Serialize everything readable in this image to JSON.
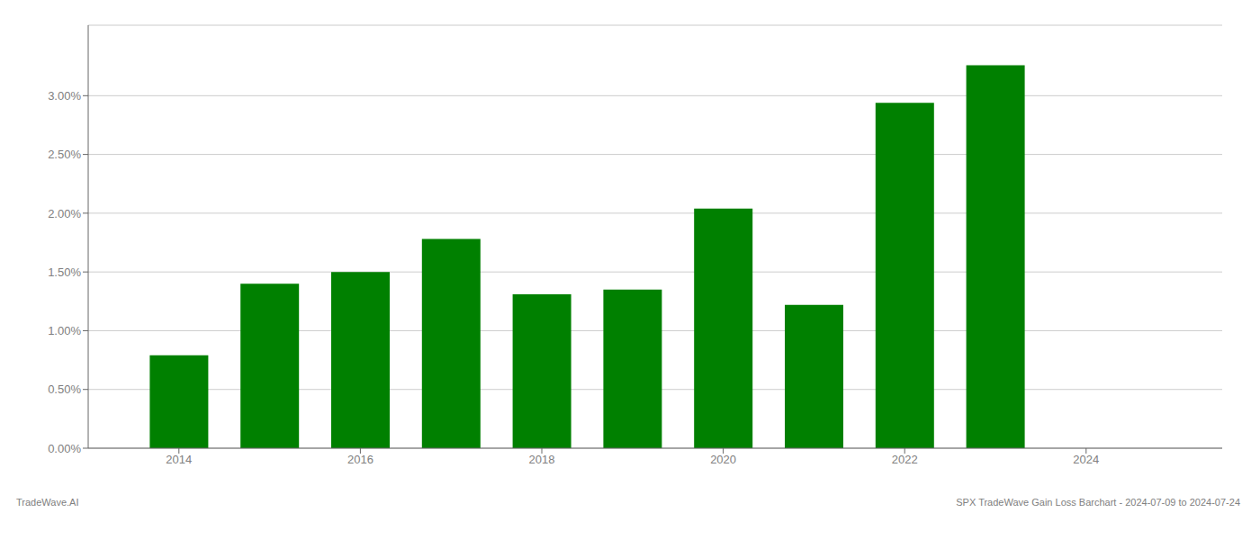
{
  "chart_data": {
    "type": "bar",
    "title": "SPX TradeWave Gain Loss Barchart - 2024-07-09 to 2024-07-24",
    "annotations": [
      "TradeWave.AI"
    ],
    "x": [
      2014,
      2015,
      2016,
      2017,
      2018,
      2019,
      2020,
      2021,
      2022,
      2023
    ],
    "values": [
      0.0079,
      0.014,
      0.015,
      0.0178,
      0.0131,
      0.0135,
      0.0204,
      0.0122,
      0.0294,
      0.0326
    ],
    "color": "#008000",
    "xlim": [
      2013.0,
      2025.5
    ],
    "xticks": [
      2014,
      2016,
      2018,
      2020,
      2022,
      2024
    ],
    "ylim": [
      0,
      0.036
    ],
    "yticks": [
      {
        "value": 0.0,
        "label": "0.00%"
      },
      {
        "value": 0.005,
        "label": "0.50%"
      },
      {
        "value": 0.01,
        "label": "1.00%"
      },
      {
        "value": 0.015,
        "label": "1.50%"
      },
      {
        "value": 0.02,
        "label": "2.00%"
      },
      {
        "value": 0.025,
        "label": "2.50%"
      },
      {
        "value": 0.03,
        "label": "3.00%"
      }
    ],
    "grid": true
  }
}
